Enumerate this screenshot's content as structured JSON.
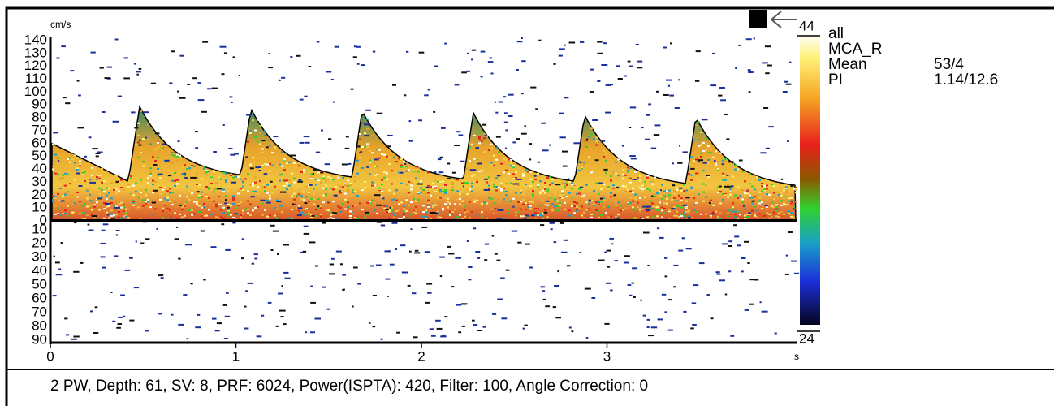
{
  "display": {
    "y_unit": "cm/s",
    "y_labels_up": [
      "140",
      "130",
      "120",
      "110",
      "100",
      "90",
      "80",
      "70",
      "60",
      "50",
      "40",
      "30",
      "20",
      "10",
      "0"
    ],
    "y_labels_down": [
      "10",
      "20",
      "30",
      "40",
      "50",
      "60",
      "70",
      "80",
      "90"
    ],
    "x_labels": [
      "0",
      "1",
      "2",
      "3"
    ],
    "x_unit": "s",
    "scale_top": "44",
    "scale_bottom": "24"
  },
  "info": [
    {
      "label": "all"
    },
    {
      "label": "MCA_R"
    },
    {
      "label": "Mean",
      "value": "53/4"
    },
    {
      "label": "PI",
      "value": "1.14/12.6"
    }
  ],
  "status": "2  PW, Depth: 61, SV: 8, PRF: 6024, Power(ISPTA): 420, Filter: 100, Angle Correction: 0"
}
